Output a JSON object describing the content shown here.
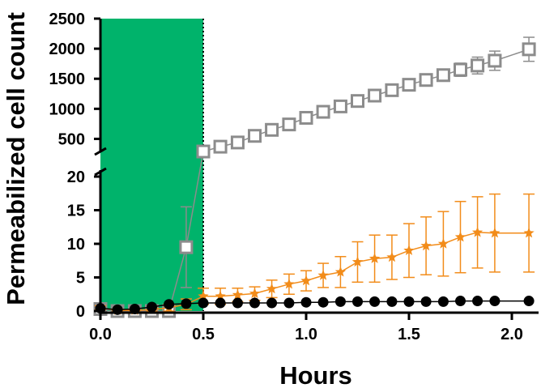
{
  "chart_data": {
    "type": "line",
    "title": "",
    "xlabel": "Hours",
    "ylabel": "Permeabilized cell count",
    "xlim": [
      0,
      2.1
    ],
    "x_ticks": [
      "0.0",
      "0.5",
      "1.0",
      "1.5",
      "2.0"
    ],
    "y_axis_broken": true,
    "ylim_lower": [
      0,
      20
    ],
    "ylim_upper": [
      250,
      2500
    ],
    "y_ticks_lower": [
      "0",
      "5",
      "10",
      "15",
      "20"
    ],
    "y_ticks_upper": [
      "500",
      "1000",
      "1500",
      "2000",
      "2500"
    ],
    "shaded_interval": {
      "x": [
        0,
        0.5
      ],
      "color": "#00b36b"
    },
    "grid": false,
    "legend": "none",
    "x": [
      0,
      0.083,
      0.167,
      0.25,
      0.333,
      0.417,
      0.5,
      0.583,
      0.667,
      0.75,
      0.833,
      0.917,
      1.0,
      1.083,
      1.167,
      1.25,
      1.333,
      1.417,
      1.5,
      1.583,
      1.667,
      1.75,
      1.833,
      1.917,
      2.083
    ],
    "series": [
      {
        "color": "#8c8c8c",
        "marker": "square-open",
        "values": [
          0.3,
          0,
          0,
          0,
          0,
          9.5,
          290,
          370,
          440,
          550,
          650,
          740,
          850,
          950,
          1040,
          1130,
          1220,
          1310,
          1400,
          1480,
          1560,
          1650,
          1720,
          1800,
          1990
        ],
        "error": [
          0.5,
          0,
          0,
          0,
          0,
          6,
          20,
          20,
          20,
          30,
          30,
          30,
          30,
          40,
          40,
          40,
          40,
          50,
          50,
          60,
          80,
          110,
          140,
          160,
          200
        ]
      },
      {
        "color": "#f28c1a",
        "marker": "star",
        "values": [
          0.5,
          0.1,
          0.1,
          0.2,
          0.5,
          1.0,
          2.2,
          2.2,
          2.4,
          2.6,
          3.3,
          4.0,
          4.5,
          5.3,
          5.8,
          7.3,
          7.8,
          8.0,
          9.0,
          9.7,
          10.0,
          11.0,
          11.7,
          11.6,
          11.6
        ],
        "error": [
          0.3,
          0.2,
          0.2,
          0.3,
          0.5,
          0.8,
          1.2,
          1.2,
          1.0,
          1.0,
          1.3,
          1.5,
          1.5,
          1.8,
          2.3,
          3.0,
          3.5,
          3.3,
          4.0,
          4.3,
          4.8,
          5.3,
          5.3,
          5.8,
          5.8
        ]
      },
      {
        "color": "#000000",
        "marker": "circle",
        "values": [
          0.4,
          0.2,
          0.3,
          0.6,
          1.0,
          1.1,
          1.2,
          1.2,
          1.2,
          1.2,
          1.2,
          1.2,
          1.3,
          1.3,
          1.4,
          1.4,
          1.4,
          1.4,
          1.4,
          1.4,
          1.4,
          1.5,
          1.5,
          1.5,
          1.5
        ],
        "error": [
          0,
          0,
          0,
          0,
          0,
          0,
          0,
          0,
          0,
          0,
          0,
          0,
          0,
          0,
          0,
          0,
          0,
          0,
          0,
          0,
          0,
          0,
          0,
          0,
          0
        ]
      }
    ]
  }
}
